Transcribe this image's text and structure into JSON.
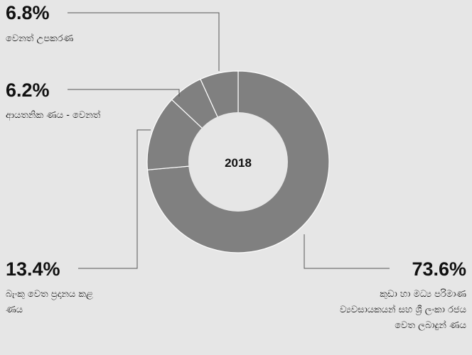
{
  "chart_data": {
    "type": "pie",
    "title": "2018",
    "categories": [
      "කුඩා හා මධ්‍ය පරිමාණ ව්‍යවසායකයන් සහ ශ්‍රී ලංකා රජය වෙත ලබාදුන් ණය",
      "බැංකු වෙත ප්‍රදානය කළ ණය",
      "ආයතනික ණය - වෙනත්",
      "වෙනත් උපකරණ"
    ],
    "values": [
      73.6,
      13.4,
      6.2,
      6.8
    ],
    "value_labels": [
      "73.6%",
      "13.4%",
      "6.2%",
      "6.8%"
    ],
    "color": "#808080"
  }
}
